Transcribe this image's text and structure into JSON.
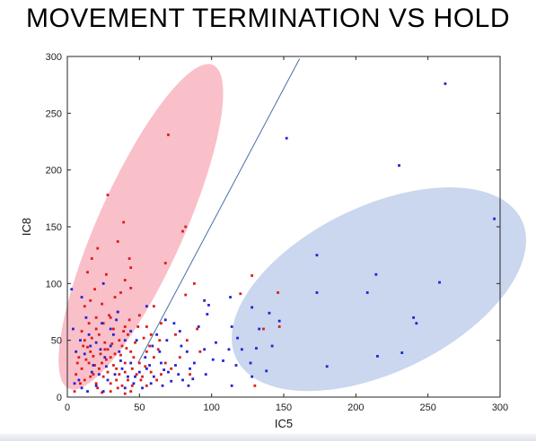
{
  "chart_data": {
    "type": "scatter",
    "title": "MOVEMENT TERMINATION VS HOLD",
    "xlabel": "IC5",
    "ylabel": "IC8",
    "xlim": [
      0,
      300
    ],
    "ylim": [
      0,
      300
    ],
    "xticks": [
      0,
      50,
      100,
      150,
      200,
      250,
      300
    ],
    "yticks": [
      0,
      50,
      100,
      150,
      200,
      250,
      300
    ],
    "grid": false,
    "legend": "none",
    "series": [
      {
        "color": "#e0191b",
        "points": [
          [
            28,
            178
          ],
          [
            39,
            154
          ],
          [
            35,
            137
          ],
          [
            21,
            131
          ],
          [
            17,
            122
          ],
          [
            43,
            122
          ],
          [
            14,
            110
          ],
          [
            27,
            108
          ],
          [
            44,
            96
          ],
          [
            70,
            231
          ],
          [
            82,
            150
          ],
          [
            80,
            146
          ],
          [
            88,
            100
          ],
          [
            82,
            90
          ],
          [
            68,
            118
          ],
          [
            44,
            114
          ],
          [
            40,
            103
          ],
          [
            128,
            107
          ],
          [
            146,
            92
          ],
          [
            120,
            91
          ],
          [
            147,
            62
          ],
          [
            130,
            10
          ],
          [
            136,
            60
          ],
          [
            60,
            80
          ],
          [
            65,
            65
          ],
          [
            75,
            55
          ],
          [
            83,
            50
          ],
          [
            90,
            60
          ],
          [
            55,
            62
          ],
          [
            50,
            72
          ],
          [
            10,
            58
          ],
          [
            12,
            50
          ],
          [
            14,
            44
          ],
          [
            16,
            40
          ],
          [
            18,
            36
          ],
          [
            20,
            60
          ],
          [
            22,
            55
          ],
          [
            24,
            30
          ],
          [
            26,
            48
          ],
          [
            28,
            42
          ],
          [
            30,
            35
          ],
          [
            32,
            60
          ],
          [
            34,
            25
          ],
          [
            36,
            50
          ],
          [
            38,
            45
          ],
          [
            40,
            30
          ],
          [
            42,
            55
          ],
          [
            44,
            40
          ],
          [
            46,
            35
          ],
          [
            48,
            20
          ],
          [
            10,
            25
          ],
          [
            12,
            15
          ],
          [
            15,
            30
          ],
          [
            18,
            20
          ],
          [
            20,
            12
          ],
          [
            22,
            25
          ],
          [
            25,
            18
          ],
          [
            28,
            22
          ],
          [
            30,
            12
          ],
          [
            32,
            28
          ],
          [
            34,
            15
          ],
          [
            36,
            20
          ],
          [
            38,
            10
          ],
          [
            40,
            22
          ],
          [
            42,
            15
          ],
          [
            45,
            25
          ],
          [
            50,
            30
          ],
          [
            52,
            18
          ],
          [
            55,
            40
          ],
          [
            58,
            22
          ],
          [
            60,
            35
          ],
          [
            62,
            15
          ],
          [
            15,
            65
          ],
          [
            25,
            65
          ],
          [
            30,
            70
          ],
          [
            35,
            75
          ],
          [
            40,
            62
          ],
          [
            20,
            70
          ],
          [
            8,
            35
          ],
          [
            6,
            20
          ],
          [
            5,
            5
          ],
          [
            30,
            5
          ],
          [
            35,
            8
          ],
          [
            40,
            3
          ],
          [
            45,
            10
          ],
          [
            55,
            10
          ],
          [
            65,
            20
          ],
          [
            12,
            80
          ],
          [
            16,
            85
          ],
          [
            24,
            82
          ],
          [
            33,
            88
          ],
          [
            37,
            92
          ],
          [
            19,
            95
          ],
          [
            29,
            72
          ],
          [
            11,
            45
          ],
          [
            13,
            33
          ],
          [
            17,
            52
          ],
          [
            23,
            38
          ],
          [
            27,
            33
          ],
          [
            31,
            47
          ],
          [
            37,
            37
          ],
          [
            41,
            43
          ],
          [
            47,
            48
          ],
          [
            53,
            52
          ],
          [
            57,
            45
          ],
          [
            9,
            12
          ],
          [
            21,
            8
          ],
          [
            26,
            42
          ],
          [
            39,
            58
          ],
          [
            49,
            62
          ],
          [
            54,
            27
          ],
          [
            63,
            42
          ],
          [
            68,
            30
          ],
          [
            72,
            25
          ],
          [
            78,
            35
          ],
          [
            85,
            20
          ],
          [
            92,
            40
          ],
          [
            58,
            55
          ],
          [
            43,
            68
          ],
          [
            16,
            18
          ],
          [
            24,
            4
          ],
          [
            33,
            38
          ],
          [
            7,
            30
          ],
          [
            19,
            28
          ],
          [
            44,
            5
          ],
          [
            51,
            15
          ],
          [
            64,
            50
          ]
        ]
      },
      {
        "color": "#2323d4",
        "points": [
          [
            262,
            276
          ],
          [
            152,
            228
          ],
          [
            230,
            204
          ],
          [
            296,
            157
          ],
          [
            173,
            125
          ],
          [
            214,
            108
          ],
          [
            258,
            101
          ],
          [
            173,
            92
          ],
          [
            208,
            92
          ],
          [
            240,
            70
          ],
          [
            242,
            65
          ],
          [
            113,
            88
          ],
          [
            128,
            79
          ],
          [
            98,
            81
          ],
          [
            95,
            85
          ],
          [
            97,
            73
          ],
          [
            140,
            74
          ],
          [
            147,
            67
          ],
          [
            133,
            60
          ],
          [
            91,
            62
          ],
          [
            114,
            62
          ],
          [
            118,
            52
          ],
          [
            103,
            48
          ],
          [
            95,
            42
          ],
          [
            121,
            42
          ],
          [
            131,
            43
          ],
          [
            142,
            45
          ],
          [
            101,
            33
          ],
          [
            108,
            32
          ],
          [
            112,
            42
          ],
          [
            127,
            30
          ],
          [
            83,
            40
          ],
          [
            88,
            30
          ],
          [
            96,
            20
          ],
          [
            117,
            28
          ],
          [
            138,
            23
          ],
          [
            128,
            18
          ],
          [
            114,
            10
          ],
          [
            180,
            27
          ],
          [
            215,
            36
          ],
          [
            232,
            39
          ],
          [
            3,
            95
          ],
          [
            10,
            88
          ],
          [
            25,
            100
          ],
          [
            35,
            75
          ],
          [
            55,
            80
          ],
          [
            68,
            68
          ],
          [
            74,
            65
          ],
          [
            78,
            58
          ],
          [
            62,
            55
          ],
          [
            48,
            50
          ],
          [
            30,
            60
          ],
          [
            15,
            55
          ],
          [
            12,
            38
          ],
          [
            18,
            28
          ],
          [
            22,
            20
          ],
          [
            28,
            15
          ],
          [
            33,
            20
          ],
          [
            38,
            25
          ],
          [
            42,
            18
          ],
          [
            46,
            12
          ],
          [
            50,
            22
          ],
          [
            55,
            25
          ],
          [
            60,
            18
          ],
          [
            65,
            30
          ],
          [
            70,
            22
          ],
          [
            75,
            28
          ],
          [
            80,
            15
          ],
          [
            85,
            25
          ],
          [
            8,
            15
          ],
          [
            10,
            8
          ],
          [
            14,
            5
          ],
          [
            20,
            10
          ],
          [
            25,
            5
          ],
          [
            40,
            8
          ],
          [
            52,
            8
          ],
          [
            58,
            12
          ],
          [
            66,
            10
          ],
          [
            72,
            14
          ],
          [
            84,
            10
          ],
          [
            6,
            40
          ],
          [
            16,
            45
          ],
          [
            26,
            35
          ],
          [
            36,
            40
          ],
          [
            44,
            30
          ],
          [
            54,
            35
          ],
          [
            64,
            40
          ],
          [
            20,
            48
          ],
          [
            30,
            45
          ],
          [
            40,
            50
          ],
          [
            32,
            55
          ],
          [
            5,
            12
          ],
          [
            17,
            22
          ],
          [
            27,
            27
          ],
          [
            37,
            32
          ],
          [
            47,
            18
          ],
          [
            57,
            28
          ],
          [
            67,
            24
          ],
          [
            77,
            20
          ],
          [
            87,
            16
          ],
          [
            24,
            65
          ],
          [
            34,
            68
          ],
          [
            44,
            58
          ],
          [
            13,
            70
          ],
          [
            23,
            42
          ],
          [
            59,
            45
          ],
          [
            69,
            50
          ],
          [
            79,
            45
          ],
          [
            4,
            60
          ],
          [
            9,
            50
          ]
        ]
      }
    ],
    "ellipses": [
      {
        "center": [
          51,
          150
        ],
        "radii": [
          123,
          38
        ],
        "angle_deg": 66,
        "color": "#f7a8b4"
      },
      {
        "center": [
          216,
          95
        ],
        "radii": [
          110,
          73
        ],
        "angle_deg": 26,
        "color": "#b6c7e8"
      }
    ],
    "boundary_line": {
      "from": [
        49,
        30
      ],
      "to": [
        161,
        298
      ],
      "color": "#4a6fa5"
    }
  }
}
